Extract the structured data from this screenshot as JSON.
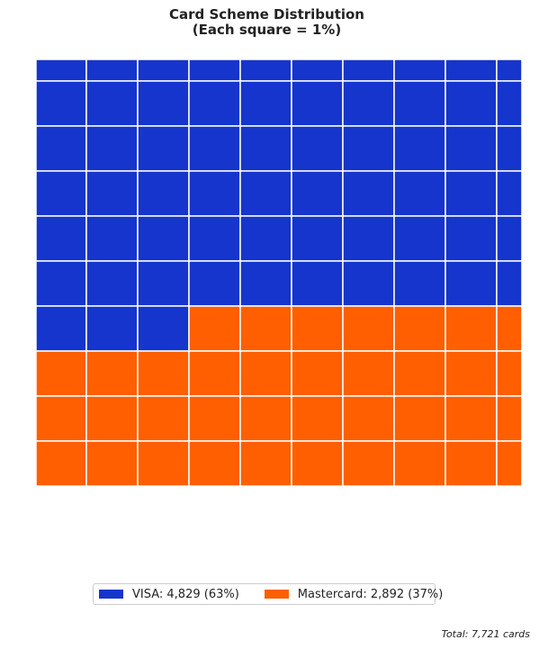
{
  "chart_data": {
    "type": "waffle",
    "title_lines": [
      "Card Scheme Distribution",
      "(Each square = 1%)"
    ],
    "grid": {
      "rows": 10,
      "cols": 10,
      "unit_percent": 1
    },
    "series": [
      {
        "name": "VISA",
        "count": 4829,
        "percent": 63,
        "squares": 63,
        "color": "#1535cc",
        "legend_label": "VISA: 4,829 (63%)"
      },
      {
        "name": "Mastercard",
        "count": 2892,
        "percent": 37,
        "squares": 37,
        "color": "#ff5f00",
        "legend_label": "Mastercard: 2,892 (37%)"
      }
    ],
    "total": 7721,
    "legend_placement": "bottom-center"
  },
  "footnote": "Total: 7,721 cards"
}
